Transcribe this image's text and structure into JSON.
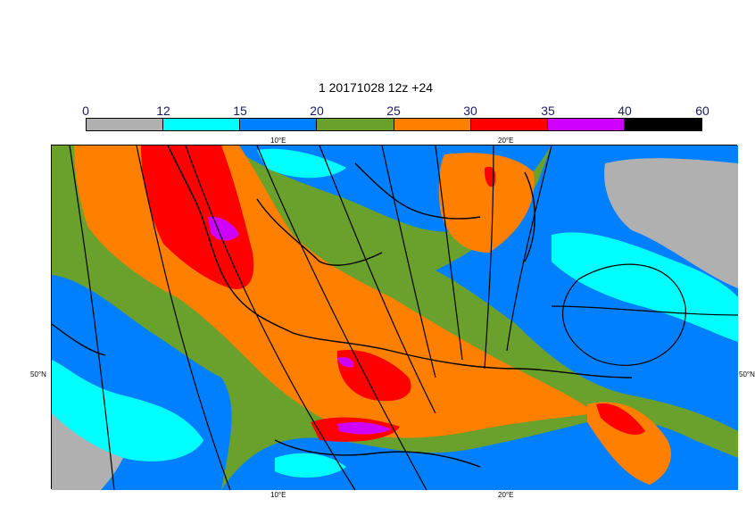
{
  "title": "1 20171028 12z +24",
  "colorbar": {
    "ticks": [
      "0",
      "12",
      "15",
      "20",
      "25",
      "30",
      "35",
      "40",
      "60"
    ],
    "bins": [
      {
        "from": 0,
        "to": 12,
        "color": "#b0b0b0"
      },
      {
        "from": 12,
        "to": 15,
        "color": "#00ffff"
      },
      {
        "from": 15,
        "to": 20,
        "color": "#0080ff"
      },
      {
        "from": 20,
        "to": 25,
        "color": "#6aa02c"
      },
      {
        "from": 25,
        "to": 30,
        "color": "#ff8000"
      },
      {
        "from": 30,
        "to": 35,
        "color": "#ff0000"
      },
      {
        "from": 35,
        "to": 40,
        "color": "#d000ff"
      },
      {
        "from": 40,
        "to": 60,
        "color": "#000000"
      }
    ]
  },
  "axes": {
    "top_lon": [
      "10°E",
      "20°E"
    ],
    "bottom_lon": [
      "10°E",
      "20°E"
    ],
    "left_lat": "50°N",
    "right_lat": "50°N"
  }
}
